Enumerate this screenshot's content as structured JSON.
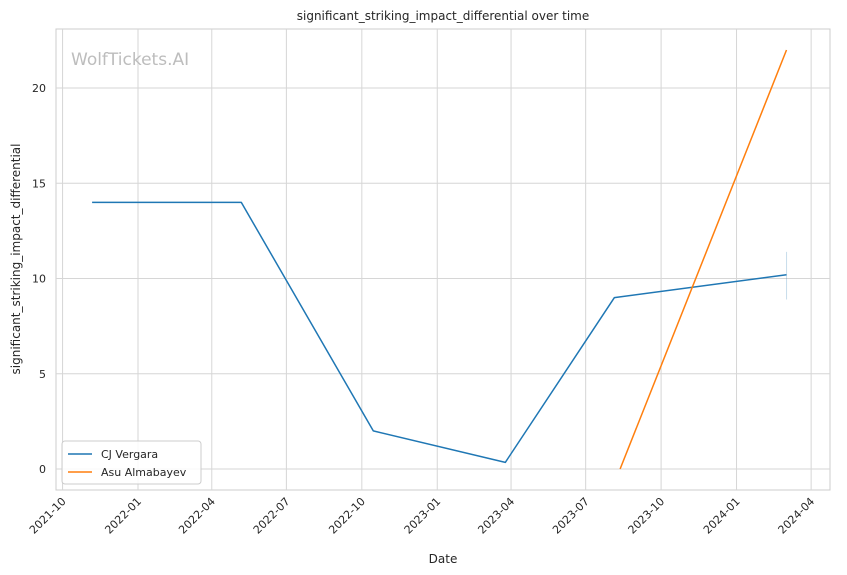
{
  "chart_data": {
    "type": "line",
    "title": "significant_striking_impact_differential over time",
    "xlabel": "Date",
    "ylabel": "significant_striking_impact_differential",
    "watermark": "WolfTickets.AI",
    "x_ticks": [
      "2021-10",
      "2022-01",
      "2022-04",
      "2022-07",
      "2022-10",
      "2023-01",
      "2023-04",
      "2023-07",
      "2023-10",
      "2024-01",
      "2024-04"
    ],
    "y_ticks": [
      0,
      5,
      10,
      15,
      20
    ],
    "xlim": [
      "2021-09-23",
      "2024-04-24"
    ],
    "ylim": [
      -1.1,
      23.1
    ],
    "grid": true,
    "legend_position": "lower-left",
    "series": [
      {
        "name": "CJ Vergara",
        "color": "#1f77b4",
        "x": [
          "2021-11-06",
          "2022-05-07",
          "2022-10-15",
          "2023-03-25",
          "2023-08-05",
          "2024-03-02"
        ],
        "y": [
          14,
          14,
          2,
          0.35,
          9,
          10.2
        ],
        "error_band": {
          "x": "2024-03-02",
          "low": 8.9,
          "high": 11.4
        }
      },
      {
        "name": "Asu Almabayev",
        "color": "#ff7f0e",
        "x": [
          "2023-08-12",
          "2024-03-02"
        ],
        "y": [
          0,
          22
        ]
      }
    ]
  }
}
